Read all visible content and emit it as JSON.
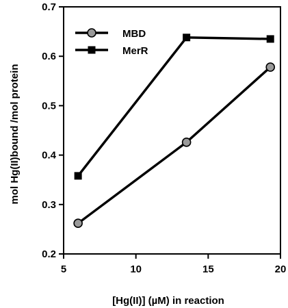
{
  "chart_data": {
    "type": "line",
    "title": "",
    "xlabel": "[Hg(II)] (µM) in reaction",
    "ylabel": "mol Hg(II)bound /mol protein",
    "xlim": [
      5,
      20
    ],
    "ylim": [
      0.2,
      0.7
    ],
    "xticks": [
      5,
      10,
      15,
      20
    ],
    "yticks": [
      0.2,
      0.3,
      0.4,
      0.5,
      0.6,
      0.7
    ],
    "xtick_labels": [
      "5",
      "10",
      "15",
      "20"
    ],
    "ytick_labels": [
      "0.2",
      "0.3",
      "0.4",
      "0.5",
      "0.6",
      "0.7"
    ],
    "grid": false,
    "legend": "top-left",
    "series": [
      {
        "name": "MBD",
        "marker": "circle",
        "x": [
          6,
          13.5,
          19.3
        ],
        "y": [
          0.262,
          0.426,
          0.578
        ]
      },
      {
        "name": "MerR",
        "marker": "square",
        "x": [
          6,
          13.5,
          19.3
        ],
        "y": [
          0.358,
          0.638,
          0.635
        ]
      }
    ]
  }
}
